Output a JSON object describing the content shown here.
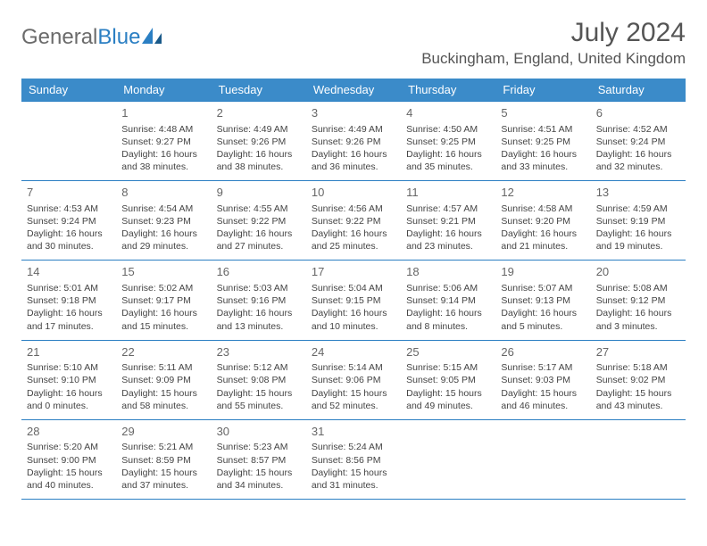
{
  "logo": {
    "text1": "General",
    "text2": "Blue"
  },
  "title": "July 2024",
  "location": "Buckingham, England, United Kingdom",
  "weekdays": [
    "Sunday",
    "Monday",
    "Tuesday",
    "Wednesday",
    "Thursday",
    "Friday",
    "Saturday"
  ],
  "colors": {
    "header_bg": "#3b8bc9",
    "border": "#2b7fc3",
    "logo_gray": "#6b6b6b",
    "logo_blue": "#2b7fc3",
    "text": "#444"
  },
  "firstDayOffset": 1,
  "days": [
    {
      "n": 1,
      "sunrise": "4:48 AM",
      "sunset": "9:27 PM",
      "daylight": "16 hours and 38 minutes."
    },
    {
      "n": 2,
      "sunrise": "4:49 AM",
      "sunset": "9:26 PM",
      "daylight": "16 hours and 38 minutes."
    },
    {
      "n": 3,
      "sunrise": "4:49 AM",
      "sunset": "9:26 PM",
      "daylight": "16 hours and 36 minutes."
    },
    {
      "n": 4,
      "sunrise": "4:50 AM",
      "sunset": "9:25 PM",
      "daylight": "16 hours and 35 minutes."
    },
    {
      "n": 5,
      "sunrise": "4:51 AM",
      "sunset": "9:25 PM",
      "daylight": "16 hours and 33 minutes."
    },
    {
      "n": 6,
      "sunrise": "4:52 AM",
      "sunset": "9:24 PM",
      "daylight": "16 hours and 32 minutes."
    },
    {
      "n": 7,
      "sunrise": "4:53 AM",
      "sunset": "9:24 PM",
      "daylight": "16 hours and 30 minutes."
    },
    {
      "n": 8,
      "sunrise": "4:54 AM",
      "sunset": "9:23 PM",
      "daylight": "16 hours and 29 minutes."
    },
    {
      "n": 9,
      "sunrise": "4:55 AM",
      "sunset": "9:22 PM",
      "daylight": "16 hours and 27 minutes."
    },
    {
      "n": 10,
      "sunrise": "4:56 AM",
      "sunset": "9:22 PM",
      "daylight": "16 hours and 25 minutes."
    },
    {
      "n": 11,
      "sunrise": "4:57 AM",
      "sunset": "9:21 PM",
      "daylight": "16 hours and 23 minutes."
    },
    {
      "n": 12,
      "sunrise": "4:58 AM",
      "sunset": "9:20 PM",
      "daylight": "16 hours and 21 minutes."
    },
    {
      "n": 13,
      "sunrise": "4:59 AM",
      "sunset": "9:19 PM",
      "daylight": "16 hours and 19 minutes."
    },
    {
      "n": 14,
      "sunrise": "5:01 AM",
      "sunset": "9:18 PM",
      "daylight": "16 hours and 17 minutes."
    },
    {
      "n": 15,
      "sunrise": "5:02 AM",
      "sunset": "9:17 PM",
      "daylight": "16 hours and 15 minutes."
    },
    {
      "n": 16,
      "sunrise": "5:03 AM",
      "sunset": "9:16 PM",
      "daylight": "16 hours and 13 minutes."
    },
    {
      "n": 17,
      "sunrise": "5:04 AM",
      "sunset": "9:15 PM",
      "daylight": "16 hours and 10 minutes."
    },
    {
      "n": 18,
      "sunrise": "5:06 AM",
      "sunset": "9:14 PM",
      "daylight": "16 hours and 8 minutes."
    },
    {
      "n": 19,
      "sunrise": "5:07 AM",
      "sunset": "9:13 PM",
      "daylight": "16 hours and 5 minutes."
    },
    {
      "n": 20,
      "sunrise": "5:08 AM",
      "sunset": "9:12 PM",
      "daylight": "16 hours and 3 minutes."
    },
    {
      "n": 21,
      "sunrise": "5:10 AM",
      "sunset": "9:10 PM",
      "daylight": "16 hours and 0 minutes."
    },
    {
      "n": 22,
      "sunrise": "5:11 AM",
      "sunset": "9:09 PM",
      "daylight": "15 hours and 58 minutes."
    },
    {
      "n": 23,
      "sunrise": "5:12 AM",
      "sunset": "9:08 PM",
      "daylight": "15 hours and 55 minutes."
    },
    {
      "n": 24,
      "sunrise": "5:14 AM",
      "sunset": "9:06 PM",
      "daylight": "15 hours and 52 minutes."
    },
    {
      "n": 25,
      "sunrise": "5:15 AM",
      "sunset": "9:05 PM",
      "daylight": "15 hours and 49 minutes."
    },
    {
      "n": 26,
      "sunrise": "5:17 AM",
      "sunset": "9:03 PM",
      "daylight": "15 hours and 46 minutes."
    },
    {
      "n": 27,
      "sunrise": "5:18 AM",
      "sunset": "9:02 PM",
      "daylight": "15 hours and 43 minutes."
    },
    {
      "n": 28,
      "sunrise": "5:20 AM",
      "sunset": "9:00 PM",
      "daylight": "15 hours and 40 minutes."
    },
    {
      "n": 29,
      "sunrise": "5:21 AM",
      "sunset": "8:59 PM",
      "daylight": "15 hours and 37 minutes."
    },
    {
      "n": 30,
      "sunrise": "5:23 AM",
      "sunset": "8:57 PM",
      "daylight": "15 hours and 34 minutes."
    },
    {
      "n": 31,
      "sunrise": "5:24 AM",
      "sunset": "8:56 PM",
      "daylight": "15 hours and 31 minutes."
    }
  ],
  "labels": {
    "sunrise": "Sunrise:",
    "sunset": "Sunset:",
    "daylight": "Daylight:"
  }
}
